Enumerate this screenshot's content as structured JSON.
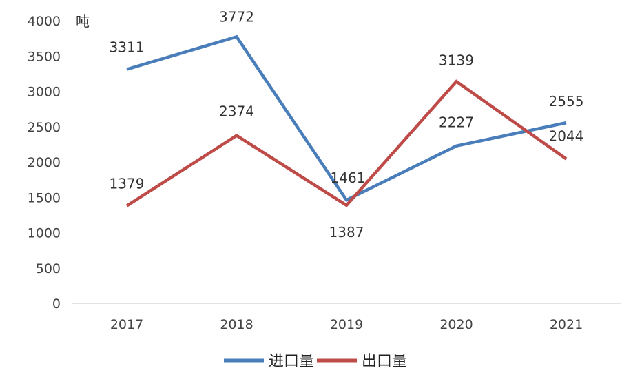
{
  "chart_data": {
    "type": "line",
    "unit_label": "吨",
    "categories": [
      "2017",
      "2018",
      "2019",
      "2020",
      "2021"
    ],
    "series": [
      {
        "name": "进口量",
        "color": "#4a7ebb",
        "values": [
          3311,
          3772,
          1461,
          2227,
          2555
        ],
        "labels": [
          "3311",
          "3772",
          "1461",
          "2227",
          "2555"
        ]
      },
      {
        "name": "出口量",
        "color": "#be4b48",
        "values": [
          1379,
          2374,
          1387,
          3139,
          2044
        ],
        "labels": [
          "1379",
          "2374",
          "1387",
          "3139",
          "2044"
        ]
      }
    ],
    "ylim": [
      0,
      4000
    ],
    "yticks": [
      "0",
      "500",
      "1000",
      "1500",
      "2000",
      "2500",
      "3000",
      "3500",
      "4000"
    ],
    "grid": false,
    "legend_position": "bottom"
  }
}
